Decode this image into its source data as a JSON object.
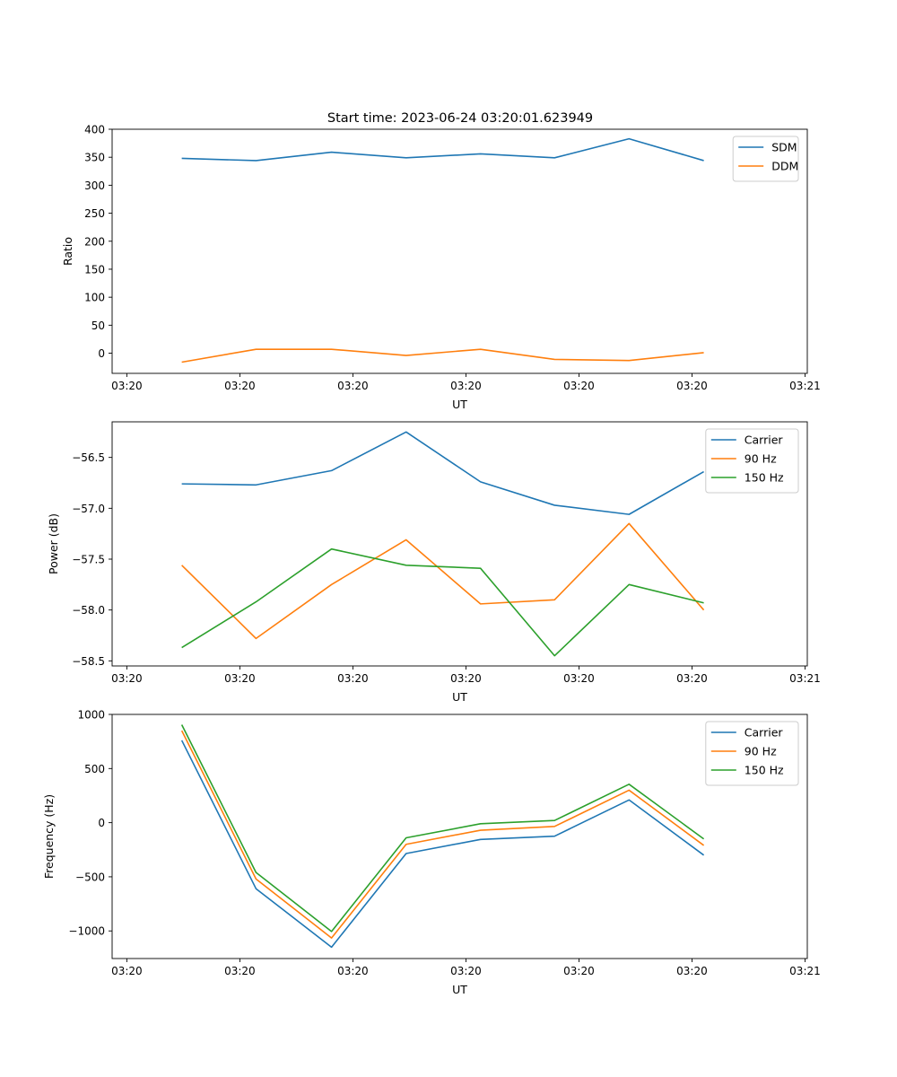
{
  "figure_title": "Start time: 2023-06-24 03:20:01.623949",
  "chart_data": [
    {
      "type": "line",
      "title": "Start time: 2023-06-24 03:20:01.623949",
      "xlabel": "UT",
      "ylabel": "Ratio",
      "x_tick_labels": [
        "03:20",
        "03:20",
        "03:20",
        "03:20",
        "03:20",
        "03:20",
        "03:21"
      ],
      "x_tick_seconds": [
        0,
        10,
        20,
        30,
        40,
        50,
        60
      ],
      "x_seconds": [
        4.86,
        11.43,
        18.11,
        24.71,
        31.29,
        37.84,
        44.43,
        51.04
      ],
      "xlim_seconds": [
        -1.3,
        60.2
      ],
      "ylim": [
        -36,
        400
      ],
      "y_ticks": [
        0,
        50,
        100,
        150,
        200,
        250,
        300,
        350,
        400
      ],
      "legend": "upper-right",
      "series": [
        {
          "name": "SDM",
          "color": "#1f77b4",
          "values": [
            348,
            344,
            359,
            349,
            356,
            349,
            383,
            344
          ]
        },
        {
          "name": "DDM",
          "color": "#ff7f0e",
          "values": [
            -16,
            7,
            7,
            -4,
            7,
            -11,
            -13,
            1
          ]
        }
      ]
    },
    {
      "type": "line",
      "xlabel": "UT",
      "ylabel": "Power (dB)",
      "x_tick_labels": [
        "03:20",
        "03:20",
        "03:20",
        "03:20",
        "03:20",
        "03:20",
        "03:21"
      ],
      "x_tick_seconds": [
        0,
        10,
        20,
        30,
        40,
        50,
        60
      ],
      "x_seconds": [
        4.86,
        11.43,
        18.11,
        24.71,
        31.29,
        37.84,
        44.43,
        51.04
      ],
      "xlim_seconds": [
        -1.3,
        60.2
      ],
      "ylim": [
        -58.55,
        -56.15
      ],
      "y_ticks": [
        -58.5,
        -58.0,
        -57.5,
        -57.0,
        -56.5
      ],
      "y_tick_labels": [
        "−58.5",
        "−58.0",
        "−57.5",
        "−57.0",
        "−56.5"
      ],
      "legend": "upper-right",
      "series": [
        {
          "name": "Carrier",
          "color": "#1f77b4",
          "values": [
            -56.76,
            -56.77,
            -56.63,
            -56.25,
            -56.74,
            -56.97,
            -57.06,
            -56.64
          ]
        },
        {
          "name": "90 Hz",
          "color": "#ff7f0e",
          "values": [
            -57.56,
            -58.28,
            -57.75,
            -57.31,
            -57.94,
            -57.9,
            -57.15,
            -58.0
          ]
        },
        {
          "name": "150 Hz",
          "color": "#2ca02c",
          "values": [
            -58.37,
            -57.92,
            -57.4,
            -57.56,
            -57.59,
            -58.45,
            -57.75,
            -57.93
          ]
        }
      ]
    },
    {
      "type": "line",
      "xlabel": "UT",
      "ylabel": "Frequency (Hz)",
      "x_tick_labels": [
        "03:20",
        "03:20",
        "03:20",
        "03:20",
        "03:20",
        "03:20",
        "03:21"
      ],
      "x_tick_seconds": [
        0,
        10,
        20,
        30,
        40,
        50,
        60
      ],
      "x_seconds": [
        4.86,
        11.43,
        18.11,
        24.71,
        31.29,
        37.84,
        44.43,
        51.04
      ],
      "xlim_seconds": [
        -1.3,
        60.2
      ],
      "ylim": [
        -1255,
        1000
      ],
      "y_ticks": [
        -1000,
        -500,
        0,
        500,
        1000
      ],
      "y_tick_labels": [
        "−1000",
        "−500",
        "0",
        "500",
        "1000"
      ],
      "legend": "upper-right",
      "series": [
        {
          "name": "Carrier",
          "color": "#1f77b4",
          "values": [
            760,
            -610,
            -1150,
            -285,
            -155,
            -125,
            210,
            -300
          ]
        },
        {
          "name": "90 Hz",
          "color": "#ff7f0e",
          "values": [
            850,
            -520,
            -1065,
            -200,
            -70,
            -35,
            300,
            -210
          ]
        },
        {
          "name": "150 Hz",
          "color": "#2ca02c",
          "values": [
            905,
            -460,
            -1005,
            -140,
            -10,
            20,
            355,
            -150
          ]
        }
      ]
    }
  ]
}
